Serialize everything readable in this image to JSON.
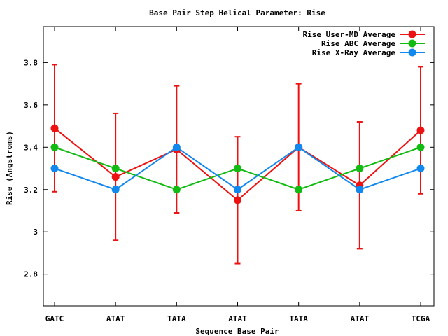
{
  "chart_data": {
    "type": "line",
    "title": "Base Pair Step Helical Parameter: Rise",
    "xlabel": "Sequence Base Pair",
    "ylabel": "Rise (Angstroms)",
    "categories": [
      "GATC",
      "ATAT",
      "TATA",
      "ATAT",
      "TATA",
      "ATAT",
      "TCGA"
    ],
    "ylim": [
      2.65,
      3.97
    ],
    "yticks": [
      2.8,
      3,
      3.2,
      3.4,
      3.6,
      3.8
    ],
    "ytick_labels": [
      "2.8",
      "3",
      "3.2",
      "3.4",
      "3.6",
      "3.8"
    ],
    "legend_position": "top-right",
    "grid": false,
    "series": [
      {
        "name": "Rise User-MD Average",
        "color": "#ee1111",
        "values": [
          3.49,
          3.26,
          3.39,
          3.15,
          3.4,
          3.22,
          3.48
        ],
        "error_low": [
          3.19,
          2.96,
          3.09,
          2.85,
          3.1,
          2.92,
          3.18
        ],
        "error_high": [
          3.79,
          3.56,
          3.69,
          3.45,
          3.7,
          3.52,
          3.78
        ]
      },
      {
        "name": "Rise ABC Average",
        "color": "#11bb11",
        "values": [
          3.4,
          3.3,
          3.2,
          3.3,
          3.2,
          3.3,
          3.4
        ]
      },
      {
        "name": "Rise X-Ray Average",
        "color": "#1188ee",
        "values": [
          3.3,
          3.2,
          3.4,
          3.2,
          3.4,
          3.2,
          3.3
        ]
      }
    ]
  }
}
